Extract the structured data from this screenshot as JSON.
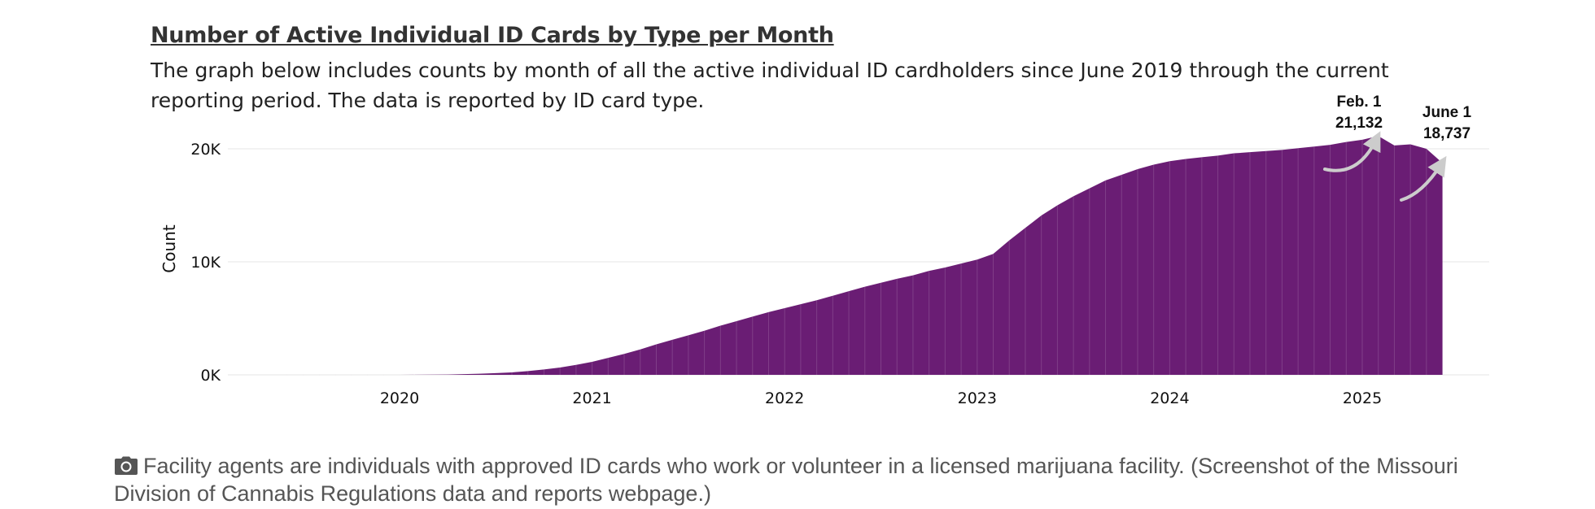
{
  "header": {
    "title": "Number of Active Individual ID Cards by Type per Month",
    "description": "The graph below includes counts by month of all the active individual ID cardholders since June 2019 through the current reporting period. The data is reported by ID card type."
  },
  "caption": {
    "icon": "camera-icon",
    "text": "Facility agents are individuals with approved ID cards who work or volunteer in a licensed marijuana facility. (Screenshot of the Missouri Division of Cannabis Regulations data and reports webpage.)"
  },
  "colors": {
    "area": "#6a1d74",
    "gridline": "#e6e6e6",
    "arrow": "#cccccc"
  },
  "annotations": [
    {
      "date": "2025-02",
      "label_line1": "Feb. 1",
      "label_line2": "21,132"
    },
    {
      "date": "2025-06",
      "label_line1": "June 1",
      "label_line2": "18,737"
    }
  ],
  "chart_data": {
    "type": "area",
    "title": "Number of Active Individual ID Cards by Type per Month",
    "xlabel": "",
    "ylabel": "Count",
    "ylim": [
      0,
      22000
    ],
    "y_ticks": [
      {
        "value": 0,
        "label": "0K"
      },
      {
        "value": 10000,
        "label": "10K"
      },
      {
        "value": 20000,
        "label": "20K"
      }
    ],
    "x_ticks": [
      "2020",
      "2021",
      "2022",
      "2023",
      "2024",
      "2025"
    ],
    "grid": true,
    "legend": "none",
    "x": [
      "2019-06",
      "2019-07",
      "2019-08",
      "2019-09",
      "2019-10",
      "2019-11",
      "2019-12",
      "2020-01",
      "2020-02",
      "2020-03",
      "2020-04",
      "2020-05",
      "2020-06",
      "2020-07",
      "2020-08",
      "2020-09",
      "2020-10",
      "2020-11",
      "2020-12",
      "2021-01",
      "2021-02",
      "2021-03",
      "2021-04",
      "2021-05",
      "2021-06",
      "2021-07",
      "2021-08",
      "2021-09",
      "2021-10",
      "2021-11",
      "2021-12",
      "2022-01",
      "2022-02",
      "2022-03",
      "2022-04",
      "2022-05",
      "2022-06",
      "2022-07",
      "2022-08",
      "2022-09",
      "2022-10",
      "2022-11",
      "2022-12",
      "2023-01",
      "2023-02",
      "2023-03",
      "2023-04",
      "2023-05",
      "2023-06",
      "2023-07",
      "2023-08",
      "2023-09",
      "2023-10",
      "2023-11",
      "2023-12",
      "2024-01",
      "2024-02",
      "2024-03",
      "2024-04",
      "2024-05",
      "2024-06",
      "2024-07",
      "2024-08",
      "2024-09",
      "2024-10",
      "2024-11",
      "2024-12",
      "2025-01",
      "2025-02",
      "2025-03",
      "2025-04",
      "2025-05",
      "2025-06"
    ],
    "values": [
      0,
      0,
      0,
      0,
      0,
      0,
      0,
      0,
      5,
      15,
      30,
      60,
      100,
      150,
      220,
      330,
      480,
      650,
      880,
      1150,
      1500,
      1850,
      2250,
      2700,
      3100,
      3500,
      3900,
      4350,
      4750,
      5150,
      5550,
      5900,
      6250,
      6600,
      7000,
      7400,
      7800,
      8150,
      8500,
      8800,
      9200,
      9500,
      9850,
      10200,
      10700,
      11900,
      13000,
      14100,
      15000,
      15800,
      16500,
      17200,
      17700,
      18200,
      18600,
      18900,
      19100,
      19250,
      19400,
      19600,
      19700,
      19800,
      19900,
      20050,
      20200,
      20350,
      20600,
      20800,
      21132,
      20300,
      20400,
      20000,
      18737
    ]
  }
}
